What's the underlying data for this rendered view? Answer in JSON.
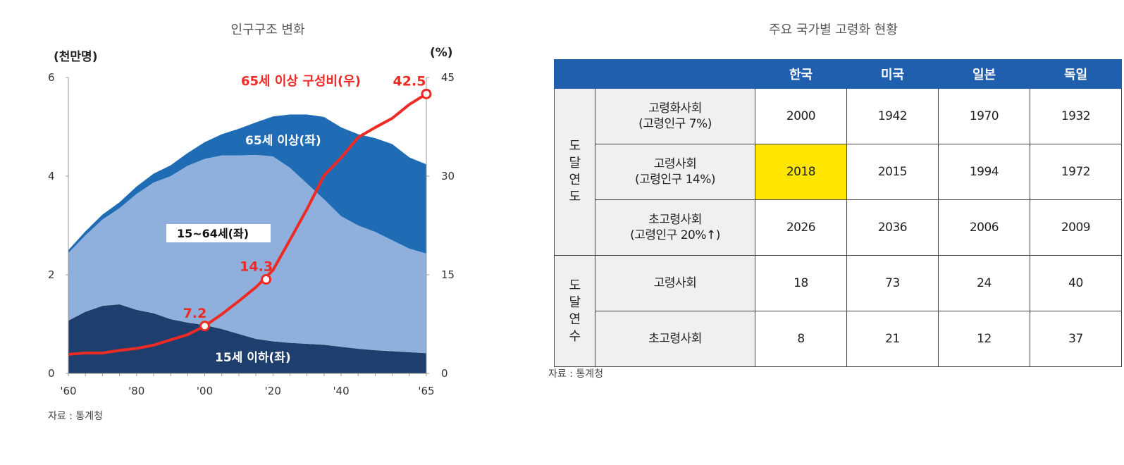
{
  "chart": {
    "title": "인구구조 변화",
    "left_unit": "(천만명)",
    "right_unit": "(%)",
    "left_ticks": [
      "6",
      "4",
      "2",
      "0"
    ],
    "right_ticks": [
      "45",
      "30",
      "15",
      "0"
    ],
    "x_ticks": [
      "'60",
      "'80",
      "'00",
      "'20",
      "'40",
      "'65"
    ],
    "line_label": "65세 이상 구성비(우)",
    "area_labels": {
      "elderly": "65세 이상(좌)",
      "working": "15~64세(좌)",
      "youth": "15세 이하(좌)"
    },
    "point_labels": [
      "7.2",
      "14.3",
      "42.5"
    ],
    "source": "자료 : 통계청",
    "colors": {
      "youth": "#1e3f6e",
      "working": "#8fb0dc",
      "elderly": "#1f6cb5",
      "line": "#ee2a24"
    }
  },
  "chart_data": {
    "type": "area",
    "title": "인구구조 변화",
    "x_unit": "year",
    "x": [
      1960,
      1965,
      1970,
      1975,
      1980,
      1985,
      1990,
      1995,
      2000,
      2005,
      2010,
      2015,
      2020,
      2025,
      2030,
      2035,
      2040,
      2045,
      2050,
      2055,
      2060,
      2065
    ],
    "xlim": [
      1960,
      2065
    ],
    "ylabel_left": "(천만명)",
    "ylabel_right": "(%)",
    "ylim_left": [
      0,
      6
    ],
    "ylim_right": [
      0,
      45
    ],
    "series": [
      {
        "name": "15세 이하(좌)",
        "axis": "left",
        "stacked": true,
        "values": [
          1.07,
          1.25,
          1.37,
          1.4,
          1.29,
          1.22,
          1.1,
          1.03,
          0.98,
          0.9,
          0.8,
          0.7,
          0.65,
          0.62,
          0.6,
          0.58,
          0.54,
          0.5,
          0.47,
          0.45,
          0.43,
          0.41
        ]
      },
      {
        "name": "15~64세(좌)",
        "axis": "left",
        "stacked": true,
        "values": [
          1.37,
          1.55,
          1.75,
          1.95,
          2.35,
          2.65,
          2.9,
          3.18,
          3.37,
          3.52,
          3.62,
          3.73,
          3.75,
          3.55,
          3.25,
          2.95,
          2.65,
          2.5,
          2.4,
          2.25,
          2.1,
          2.02
        ]
      },
      {
        "name": "65세 이상(좌)",
        "axis": "left",
        "stacked": true,
        "values": [
          0.06,
          0.08,
          0.1,
          0.12,
          0.15,
          0.18,
          0.22,
          0.26,
          0.34,
          0.43,
          0.54,
          0.66,
          0.81,
          1.08,
          1.4,
          1.67,
          1.8,
          1.85,
          1.9,
          1.95,
          1.85,
          1.81
        ]
      },
      {
        "name": "65세 이상 구성비(우)",
        "axis": "right",
        "type": "line",
        "values": [
          2.9,
          3.1,
          3.1,
          3.5,
          3.8,
          4.3,
          5.1,
          5.9,
          7.2,
          9.0,
          11.0,
          13.1,
          15.7,
          20.3,
          25.0,
          30.1,
          32.8,
          35.9,
          37.4,
          38.8,
          40.9,
          42.5
        ]
      }
    ],
    "annotations": [
      {
        "x": 2000,
        "value": 7.2,
        "text": "7.2"
      },
      {
        "x": 2018,
        "value": 14.3,
        "text": "14.3"
      },
      {
        "x": 2065,
        "value": 42.5,
        "text": "42.5"
      }
    ],
    "grid": false
  },
  "table": {
    "title": "주요 국가별 고령화 현황",
    "header": [
      "한국",
      "미국",
      "일본",
      "독일"
    ],
    "groups": [
      {
        "label": "도달연도",
        "rows": [
          {
            "label": [
              "고령화사회",
              "(고령인구 7%)"
            ],
            "values": [
              "2000",
              "1942",
              "1970",
              "1932"
            ]
          },
          {
            "label": [
              "고령사회",
              "(고령인구 14%)"
            ],
            "values": [
              "2018",
              "2015",
              "1994",
              "1972"
            ]
          },
          {
            "label": [
              "초고령사회",
              "(고령인구 20%↑)"
            ],
            "values": [
              "2026",
              "2036",
              "2006",
              "2009"
            ]
          }
        ]
      },
      {
        "label": "도달연수",
        "rows": [
          {
            "label": [
              "고령사회"
            ],
            "values": [
              "18",
              "73",
              "24",
              "40"
            ]
          },
          {
            "label": [
              "초고령사회"
            ],
            "values": [
              "8",
              "21",
              "12",
              "37"
            ]
          }
        ]
      }
    ],
    "highlight_color": "#ffe600",
    "source": "자료 : 통계청"
  }
}
